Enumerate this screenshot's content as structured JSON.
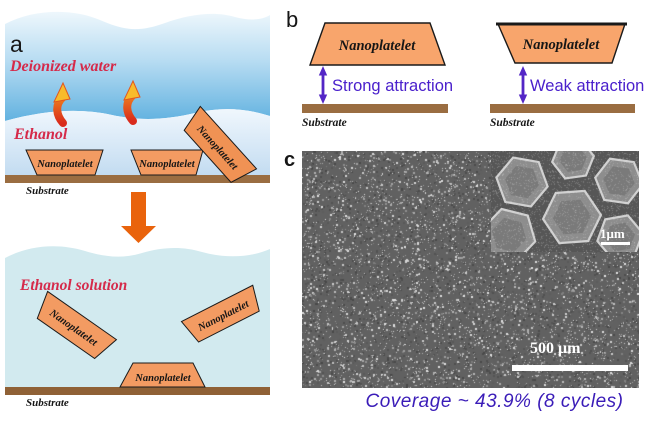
{
  "figure": {
    "panel_a": {
      "label": "a",
      "top": {
        "water_label": "Deionized water",
        "ethanol_label": "Ethanol",
        "platelet_label": "Nanoplatelet",
        "substrate_label": "Substrate"
      },
      "bottom": {
        "solution_label": "Ethanol solution",
        "platelet_label": "Nanoplatelet",
        "substrate_label": "Substrate"
      }
    },
    "panel_b": {
      "label": "b",
      "left": {
        "platelet_label": "Nanoplatelet",
        "attraction_label": "Strong attraction",
        "substrate_label": "Substrate"
      },
      "right": {
        "platelet_label": "Nanoplatelet",
        "attraction_label": "Weak attraction",
        "substrate_label": "Substrate"
      }
    },
    "panel_c": {
      "label": "c",
      "main_scale_bar": "500 μm",
      "inset_scale_bar": "1μm",
      "caption": "Coverage ~ 43.9% (8 cycles)"
    },
    "colors": {
      "water_blue_deep": "#62b2e0",
      "water_blue_light": "#ecf6fc",
      "ethanol_layer_blue": "#c5ddf1",
      "ethanol_solution_cyan": "#d2eaef",
      "platelet_orange": "#f49d66",
      "substrate_brown": "#9a6d41",
      "red_label": "#d52a4a",
      "attraction_purple": "#4a20cc",
      "down_arrow_orange": "#e9630c",
      "sem_gray": "#616161"
    }
  }
}
